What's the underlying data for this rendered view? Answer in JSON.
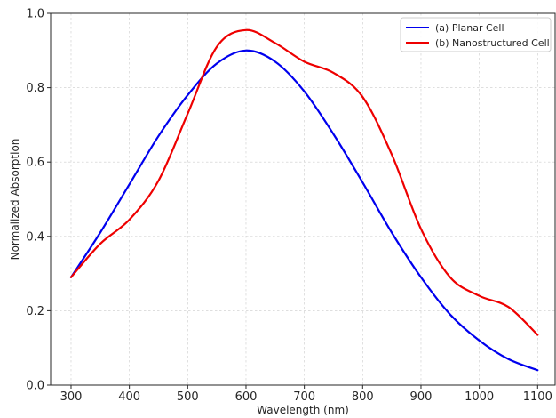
{
  "chart_data": {
    "type": "line",
    "title": "",
    "xlabel": "Wavelength (nm)",
    "ylabel": "Normalized Absorption",
    "xlim": [
      265,
      1130
    ],
    "ylim": [
      0.0,
      1.0
    ],
    "xticks": [
      300,
      400,
      500,
      600,
      700,
      800,
      900,
      1000,
      1100
    ],
    "yticks": [
      0.0,
      0.2,
      0.4,
      0.6,
      0.8,
      1.0
    ],
    "xtick_labels": [
      "300",
      "400",
      "500",
      "600",
      "700",
      "800",
      "900",
      "1000",
      "1100"
    ],
    "ytick_labels": [
      "0.0",
      "0.2",
      "0.4",
      "0.6",
      "0.8",
      "1.0"
    ],
    "grid": true,
    "legend_position": "top-right",
    "series": [
      {
        "name": "(a) Planar Cell",
        "color": "#0000ee",
        "x": [
          300,
          350,
          400,
          450,
          500,
          550,
          600,
          650,
          700,
          750,
          800,
          850,
          900,
          950,
          1000,
          1050,
          1100
        ],
        "y": [
          0.29,
          0.41,
          0.54,
          0.67,
          0.78,
          0.865,
          0.9,
          0.87,
          0.79,
          0.675,
          0.545,
          0.41,
          0.29,
          0.19,
          0.12,
          0.07,
          0.04
        ]
      },
      {
        "name": "(b) Nanostructured Cell",
        "color": "#ee0000",
        "x": [
          300,
          350,
          400,
          450,
          500,
          550,
          600,
          650,
          700,
          750,
          800,
          850,
          900,
          950,
          1000,
          1050,
          1100
        ],
        "y": [
          0.29,
          0.38,
          0.445,
          0.55,
          0.73,
          0.91,
          0.955,
          0.92,
          0.87,
          0.84,
          0.775,
          0.62,
          0.42,
          0.29,
          0.24,
          0.21,
          0.135
        ]
      }
    ]
  }
}
